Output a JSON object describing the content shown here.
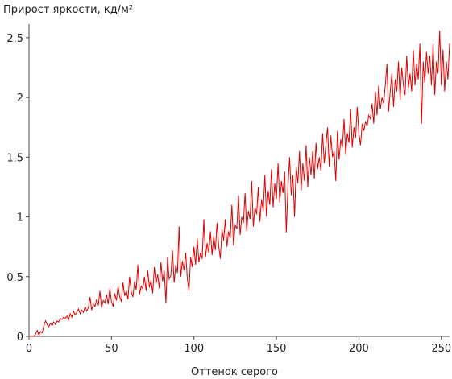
{
  "chart_data": {
    "type": "line",
    "title": "Прирост яркости, кд/м²",
    "xlabel": "Оттенок серого",
    "x": [
      1,
      2,
      3,
      4,
      5,
      6,
      7,
      8,
      9,
      10,
      11,
      12,
      13,
      14,
      15,
      16,
      17,
      18,
      19,
      20,
      21,
      22,
      23,
      24,
      25,
      26,
      27,
      28,
      29,
      30,
      31,
      32,
      33,
      34,
      35,
      36,
      37,
      38,
      39,
      40,
      41,
      42,
      43,
      44,
      45,
      46,
      47,
      48,
      49,
      50,
      51,
      52,
      53,
      54,
      55,
      56,
      57,
      58,
      59,
      60,
      61,
      62,
      63,
      64,
      65,
      66,
      67,
      68,
      69,
      70,
      71,
      72,
      73,
      74,
      75,
      76,
      77,
      78,
      79,
      80,
      81,
      82,
      83,
      84,
      85,
      86,
      87,
      88,
      89,
      90,
      91,
      92,
      93,
      94,
      95,
      96,
      97,
      98,
      99,
      100,
      101,
      102,
      103,
      104,
      105,
      106,
      107,
      108,
      109,
      110,
      111,
      112,
      113,
      114,
      115,
      116,
      117,
      118,
      119,
      120,
      121,
      122,
      123,
      124,
      125,
      126,
      127,
      128,
      129,
      130,
      131,
      132,
      133,
      134,
      135,
      136,
      137,
      138,
      139,
      140,
      141,
      142,
      143,
      144,
      145,
      146,
      147,
      148,
      149,
      150,
      151,
      152,
      153,
      154,
      155,
      156,
      157,
      158,
      159,
      160,
      161,
      162,
      163,
      164,
      165,
      166,
      167,
      168,
      169,
      170,
      171,
      172,
      173,
      174,
      175,
      176,
      177,
      178,
      179,
      180,
      181,
      182,
      183,
      184,
      185,
      186,
      187,
      188,
      189,
      190,
      191,
      192,
      193,
      194,
      195,
      196,
      197,
      198,
      199,
      200,
      201,
      202,
      203,
      204,
      205,
      206,
      207,
      208,
      209,
      210,
      211,
      212,
      213,
      214,
      215,
      216,
      217,
      218,
      219,
      220,
      221,
      222,
      223,
      224,
      225,
      226,
      227,
      228,
      229,
      230,
      231,
      232,
      233,
      234,
      235,
      236,
      237,
      238,
      239,
      240,
      241,
      242,
      243,
      244,
      245,
      246,
      247,
      248,
      249,
      250,
      251,
      252,
      253,
      254,
      255
    ],
    "series": [
      {
        "color": "#e00000",
        "values": [
          0,
          0,
          0,
          0.02,
          0.05,
          0.01,
          0.04,
          0.03,
          0.09,
          0.13,
          0.1,
          0.08,
          0.11,
          0.09,
          0.12,
          0.1,
          0.13,
          0.12,
          0.15,
          0.14,
          0.16,
          0.15,
          0.17,
          0.14,
          0.19,
          0.16,
          0.21,
          0.18,
          0.2,
          0.23,
          0.19,
          0.22,
          0.2,
          0.25,
          0.21,
          0.24,
          0.33,
          0.22,
          0.27,
          0.25,
          0.31,
          0.26,
          0.38,
          0.24,
          0.3,
          0.28,
          0.35,
          0.27,
          0.4,
          0.29,
          0.25,
          0.36,
          0.3,
          0.42,
          0.33,
          0.29,
          0.45,
          0.34,
          0.38,
          0.31,
          0.5,
          0.37,
          0.33,
          0.46,
          0.39,
          0.6,
          0.35,
          0.42,
          0.4,
          0.5,
          0.38,
          0.55,
          0.41,
          0.47,
          0.36,
          0.58,
          0.44,
          0.52,
          0.4,
          0.62,
          0.46,
          0.55,
          0.28,
          0.66,
          0.48,
          0.51,
          0.72,
          0.45,
          0.6,
          0.53,
          0.92,
          0.5,
          0.63,
          0.55,
          0.7,
          0.48,
          0.38,
          0.66,
          0.58,
          0.75,
          0.6,
          0.82,
          0.62,
          0.7,
          0.65,
          0.98,
          0.66,
          0.78,
          0.7,
          0.88,
          0.68,
          0.84,
          0.72,
          0.95,
          0.76,
          0.65,
          0.9,
          0.8,
          0.98,
          0.75,
          0.88,
          0.82,
          1.1,
          0.76,
          0.93,
          0.9,
          1.18,
          0.85,
          1.0,
          0.95,
          1.2,
          0.88,
          1.05,
          0.98,
          1.3,
          0.92,
          1.08,
          1.02,
          1.25,
          0.96,
          1.15,
          1.05,
          1.35,
          1.0,
          1.22,
          1.1,
          1.4,
          1.08,
          1.28,
          1.15,
          1.45,
          1.12,
          1.3,
          1.2,
          1.38,
          0.87,
          1.25,
          1.5,
          1.18,
          1.35,
          1.0,
          1.42,
          1.28,
          1.55,
          1.22,
          1.45,
          1.3,
          1.6,
          1.25,
          1.5,
          1.35,
          1.55,
          1.32,
          1.62,
          1.4,
          1.5,
          1.38,
          1.7,
          1.45,
          1.6,
          1.75,
          1.42,
          1.68,
          1.5,
          1.55,
          1.3,
          1.72,
          1.48,
          1.65,
          1.58,
          1.82,
          1.52,
          1.7,
          1.62,
          1.9,
          1.58,
          1.75,
          1.66,
          1.92,
          1.7,
          1.6,
          1.78,
          1.72,
          1.8,
          1.76,
          1.85,
          1.82,
          1.95,
          1.78,
          2.05,
          1.85,
          2.1,
          1.9,
          2.0,
          1.95,
          2.1,
          2.28,
          1.88,
          2.05,
          2.2,
          1.92,
          2.15,
          2.05,
          2.3,
          1.98,
          2.25,
          2.1,
          2.02,
          2.35,
          2.08,
          2.2,
          2.05,
          2.4,
          2.1,
          2.28,
          2.15,
          2.45,
          1.78,
          2.3,
          2.12,
          2.38,
          2.2,
          2.35,
          2.1,
          2.45,
          2.02,
          2.3,
          2.2,
          2.56,
          2.1,
          2.4,
          2.05,
          2.3,
          2.15,
          2.45
        ]
      }
    ],
    "xlim": [
      0,
      255
    ],
    "ylim": [
      0,
      2.6
    ],
    "xticks": [
      0,
      50,
      100,
      150,
      200,
      250
    ],
    "yticks": [
      0,
      0.5,
      1,
      1.5,
      2,
      2.5
    ],
    "grid": false
  }
}
